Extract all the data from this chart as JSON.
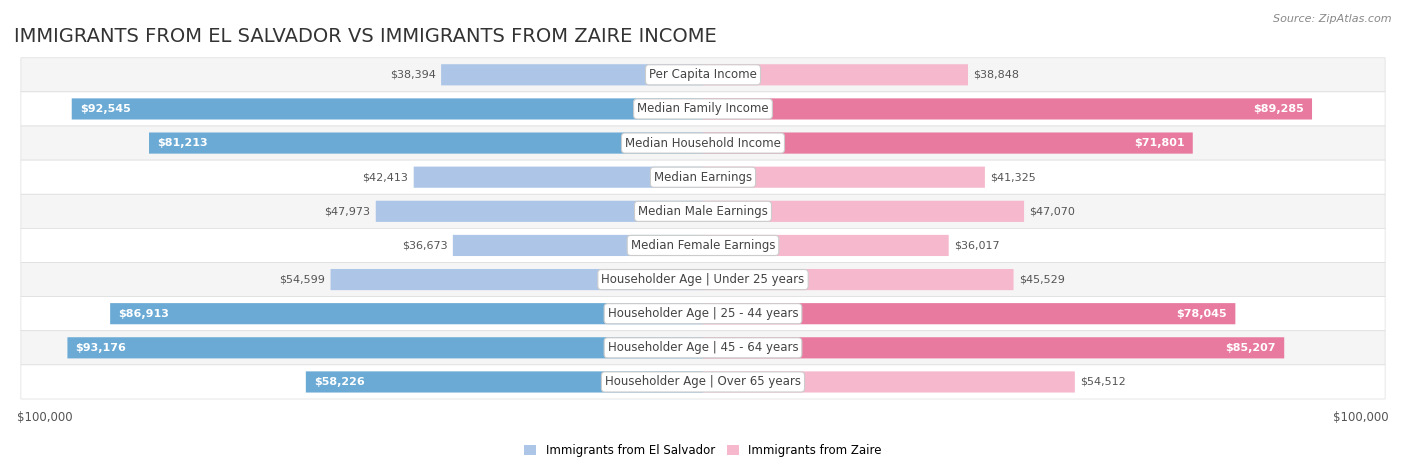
{
  "title": "IMMIGRANTS FROM EL SALVADOR VS IMMIGRANTS FROM ZAIRE INCOME",
  "source": "Source: ZipAtlas.com",
  "categories": [
    "Per Capita Income",
    "Median Family Income",
    "Median Household Income",
    "Median Earnings",
    "Median Male Earnings",
    "Median Female Earnings",
    "Householder Age | Under 25 years",
    "Householder Age | 25 - 44 years",
    "Householder Age | 45 - 64 years",
    "Householder Age | Over 65 years"
  ],
  "el_salvador": [
    38394,
    92545,
    81213,
    42413,
    47973,
    36673,
    54599,
    86913,
    93176,
    58226
  ],
  "zaire": [
    38848,
    89285,
    71801,
    41325,
    47070,
    36017,
    45529,
    78045,
    85207,
    54512
  ],
  "max_value": 100000,
  "color_el_salvador_light": "#adc6e8",
  "color_el_salvador_dark": "#6aaad4",
  "color_zaire_light": "#f5b8cc",
  "color_zaire_dark": "#e87aa0",
  "label_el_salvador": "Immigrants from El Salvador",
  "label_zaire": "Immigrants from Zaire",
  "background_color": "#ffffff",
  "row_bg_light": "#f5f5f5",
  "row_bg_white": "#ffffff",
  "row_border": "#dddddd",
  "title_fontsize": 14,
  "source_fontsize": 8,
  "label_fontsize": 8.5,
  "value_fontsize": 8,
  "axis_label_fontsize": 8.5,
  "ylabel_left": "$100,000",
  "ylabel_right": "$100,000",
  "threshold": 55000
}
